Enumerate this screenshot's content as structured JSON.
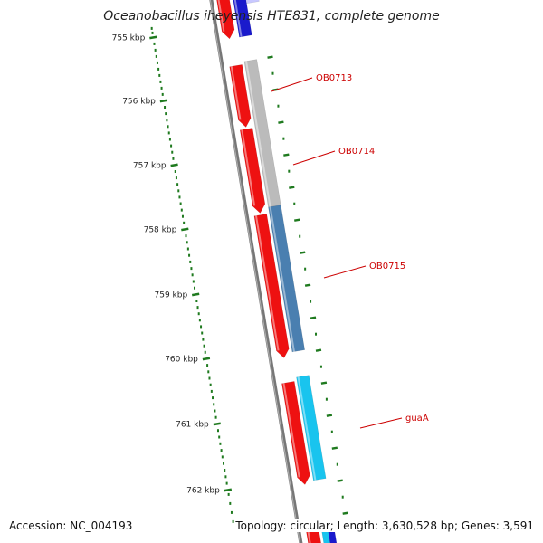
{
  "title": "Oceanobacillus iheyensis HTE831, complete genome",
  "accession": "Accession: NC_004193",
  "summary": "Topology: circular; Length: 3,630,528 bp; Genes: 3,591",
  "colors": {
    "forward_cds": "#ee1111",
    "gray_feature": "#bbbbbb",
    "steel_feature": "#4a7fb0",
    "cyan_feature": "#19c4ee",
    "blue_feature": "#1a1acc",
    "tick": "#1f7a1f",
    "backbone": "#777777",
    "label": "#cc0000"
  },
  "ruler": {
    "tick_labels": [
      "755 kbp",
      "756 kbp",
      "757 kbp",
      "758 kbp",
      "759 kbp",
      "760 kbp",
      "761 kbp",
      "762 kbp"
    ]
  },
  "genes": [
    {
      "name": "OB0713"
    },
    {
      "name": "OB0714"
    },
    {
      "name": "OB0715"
    },
    {
      "name": "guaA"
    }
  ]
}
